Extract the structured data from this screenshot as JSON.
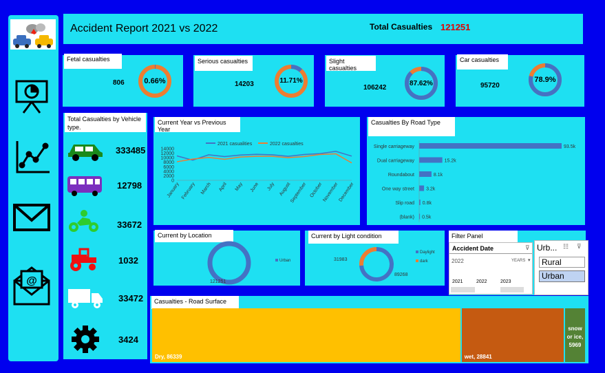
{
  "header": {
    "title": "Accident Report 2021 vs 2022",
    "total_label": "Total Casualties",
    "total_value": "121251"
  },
  "kpis": [
    {
      "label": "Fetal casualties",
      "value": "806",
      "pct": "0.66%",
      "fraction": 0.0066
    },
    {
      "label": "Serious casualties",
      "value": "14203",
      "pct": "11.71%",
      "fraction": 0.1171
    },
    {
      "label": "Slight casualties",
      "value": "106242",
      "pct": "87.62%",
      "fraction": 0.8762
    },
    {
      "label": "Car casualties",
      "value": "95720",
      "pct": "78.9%",
      "fraction": 0.789
    }
  ],
  "vehicles": {
    "title": "Total Casualties by Vehicle type.",
    "items": [
      {
        "icon": "car-icon",
        "value": "333485"
      },
      {
        "icon": "bus-icon",
        "value": "12798"
      },
      {
        "icon": "motorcycle-icon",
        "value": "33672"
      },
      {
        "icon": "tractor-icon",
        "value": "1032"
      },
      {
        "icon": "van-icon",
        "value": "33472"
      },
      {
        "icon": "gear-icon",
        "value": "3424"
      }
    ]
  },
  "sidebar": {
    "icons": [
      "car-crash-icon",
      "presentation-chart-icon",
      "line-graph-icon",
      "mail-icon",
      "email-open-icon"
    ]
  },
  "panels": {
    "current_vs_prev": "Current Year vs Previous Year",
    "road_type": "Casualties By Road Type",
    "location": "Current  by Location",
    "light": "Current by Light condition",
    "filter": "Filter Panel",
    "surface": "Casualties - Road Surface"
  },
  "filter": {
    "date_title": "Accident Date",
    "selected_year": "2022",
    "years_label": "YEARS",
    "years": [
      "2021",
      "2022",
      "2023"
    ],
    "urban_title": "Urb...",
    "options": [
      "Rural",
      "Urban"
    ]
  },
  "chart_data": [
    {
      "type": "line",
      "title": "Current Year vs Previous Year",
      "categories": [
        "January",
        "February",
        "March",
        "April",
        "May",
        "June",
        "July",
        "August",
        "September",
        "October",
        "November",
        "December"
      ],
      "series": [
        {
          "name": "2021 casualities",
          "color": "#4472c4",
          "values": [
            10800,
            8900,
            11300,
            10500,
            11200,
            11500,
            11300,
            10600,
            11400,
            11800,
            12800,
            10700
          ]
        },
        {
          "name": "2022 casualties",
          "color": "#ed7d31",
          "values": [
            8200,
            9400,
            10100,
            9300,
            10300,
            10600,
            10600,
            10000,
            10500,
            11400,
            11700,
            7700
          ]
        }
      ],
      "ylim": [
        0,
        14000
      ],
      "yticks": [
        "0",
        "2000",
        "4000",
        "6000",
        "8000",
        "10000",
        "12000",
        "14000"
      ],
      "legend": "top"
    },
    {
      "type": "bar",
      "title": "Casualties By Road Type",
      "categories": [
        "Single carriageway",
        "Dual carriageway",
        "Roundabout",
        "One way street",
        "Slip road",
        "(blank)"
      ],
      "values": [
        93.5,
        15.2,
        8.1,
        3.2,
        0.8,
        0.5
      ],
      "data_labels": [
        "93.5k",
        "15.2k",
        "8.1k",
        "3.2k",
        "0.8k",
        "0.5k"
      ],
      "color": "#4472c4",
      "orientation": "horizontal"
    },
    {
      "type": "pie",
      "title": "Current  by Location",
      "labels": [
        "Urban"
      ],
      "values": [
        121251
      ],
      "data_labels": [
        "121251"
      ],
      "colors": [
        "#4472c4"
      ]
    },
    {
      "type": "pie",
      "title": "Current by Light condition",
      "labels": [
        "Daylight",
        "dark"
      ],
      "values": [
        89268,
        31983
      ],
      "data_labels": [
        "89268",
        "31983"
      ],
      "colors": [
        "#4472c4",
        "#ed7d31"
      ]
    },
    {
      "type": "heatmap",
      "title": "Casualties - Road Surface",
      "labels": [
        "Dry",
        "wet",
        "snow or ice"
      ],
      "values": [
        86339,
        28841,
        5969
      ],
      "data_labels": [
        "Dry, 86339",
        "wet, 28841",
        "snow or ice, 5969"
      ],
      "colors": [
        "#ffc000",
        "#c55a11",
        "#548235"
      ]
    }
  ]
}
